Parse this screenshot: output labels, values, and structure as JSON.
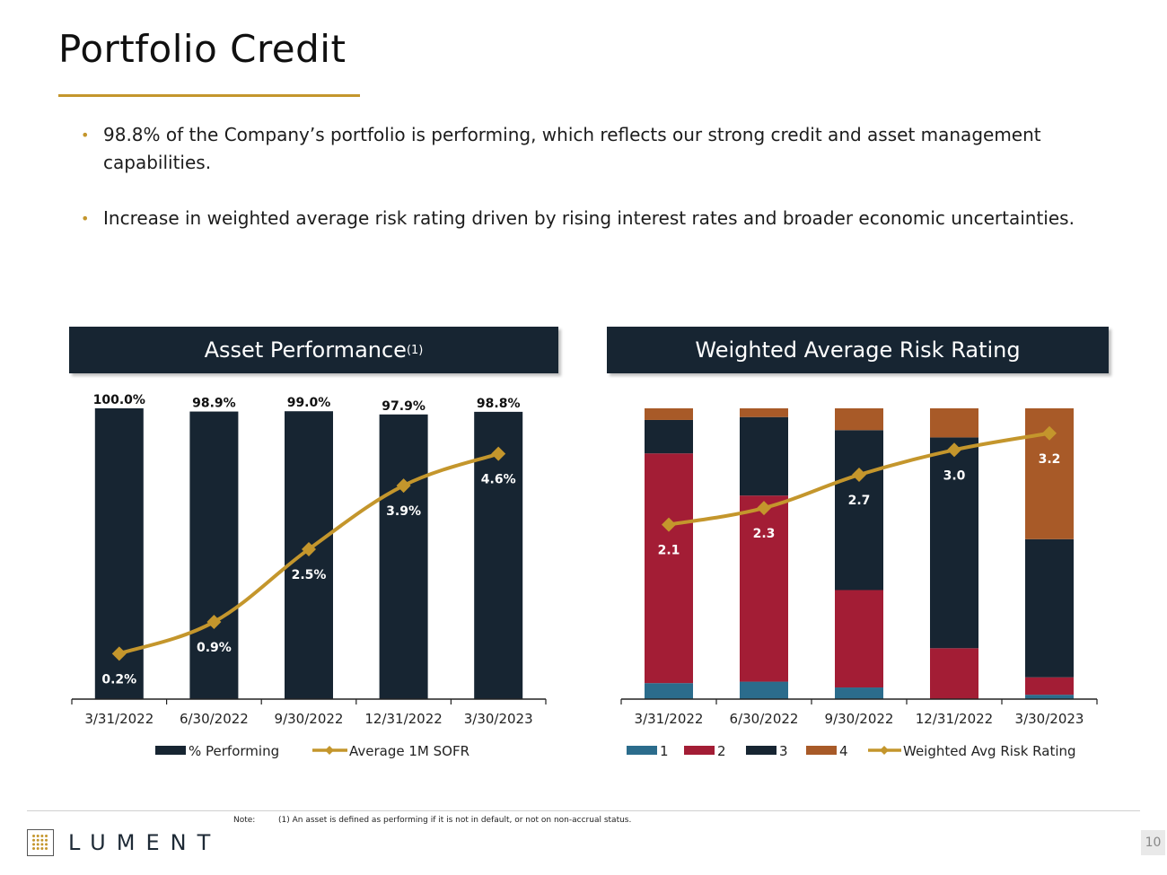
{
  "page": {
    "title": "Portfolio Credit",
    "bullets": [
      "98.8% of the Company’s portfolio is performing, which reflects our strong credit and asset management capabilities.",
      "Increase in weighted average risk rating driven by rising interest rates and broader economic uncertainties."
    ],
    "note_label": "Note:",
    "note": "(1) An asset is defined as performing if it is not in default, or not on non-accrual status.",
    "logo_text": "LUMENT",
    "page_number": "10"
  },
  "colors": {
    "navy": "#172532",
    "gold": "#c4962c",
    "rating_1": "#2b6c8c",
    "rating_2": "#a31d35",
    "rating_3": "#172532",
    "rating_4": "#a85a28"
  },
  "chart_data": [
    {
      "type": "bar",
      "title": "Asset Performance",
      "title_superscript": "(1)",
      "categories": [
        "3/31/2022",
        "6/30/2022",
        "9/30/2022",
        "12/31/2022",
        "3/30/2023"
      ],
      "series": [
        {
          "name": "% Performing",
          "kind": "bar",
          "values": [
            100.0,
            98.9,
            99.0,
            97.9,
            98.8
          ],
          "labels": [
            "100.0%",
            "98.9%",
            "99.0%",
            "97.9%",
            "98.8%"
          ],
          "ylim": [
            0,
            100
          ]
        },
        {
          "name": "Average 1M SOFR",
          "kind": "line",
          "values": [
            0.2,
            0.9,
            2.5,
            3.9,
            4.6
          ],
          "labels": [
            "0.2%",
            "0.9%",
            "2.5%",
            "3.9%",
            "4.6%"
          ],
          "ylim": [
            -0.8,
            5.6
          ]
        }
      ],
      "legend": "bottom"
    },
    {
      "type": "bar",
      "stacked": true,
      "title": "Weighted Average Risk Rating",
      "categories": [
        "3/31/2022",
        "6/30/2022",
        "9/30/2022",
        "12/31/2022",
        "3/30/2023"
      ],
      "series": [
        {
          "name": "1",
          "kind": "bar",
          "values": [
            5.5,
            6.0,
            4.0,
            0.0,
            1.5
          ]
        },
        {
          "name": "2",
          "kind": "bar",
          "values": [
            79.0,
            64.0,
            33.5,
            17.5,
            6.0
          ]
        },
        {
          "name": "3",
          "kind": "bar",
          "values": [
            11.5,
            27.0,
            55.0,
            72.5,
            47.5
          ]
        },
        {
          "name": "4",
          "kind": "bar",
          "values": [
            4.0,
            3.0,
            7.5,
            10.0,
            45.0
          ]
        },
        {
          "name": "Weighted Avg Risk Rating",
          "kind": "line",
          "values": [
            2.1,
            2.3,
            2.7,
            3.0,
            3.2
          ],
          "labels": [
            "2.1",
            "2.3",
            "2.7",
            "3.0",
            "3.2"
          ],
          "ylim": [
            0,
            3.5
          ]
        }
      ],
      "ylim": [
        0,
        100
      ],
      "legend": "bottom"
    }
  ]
}
